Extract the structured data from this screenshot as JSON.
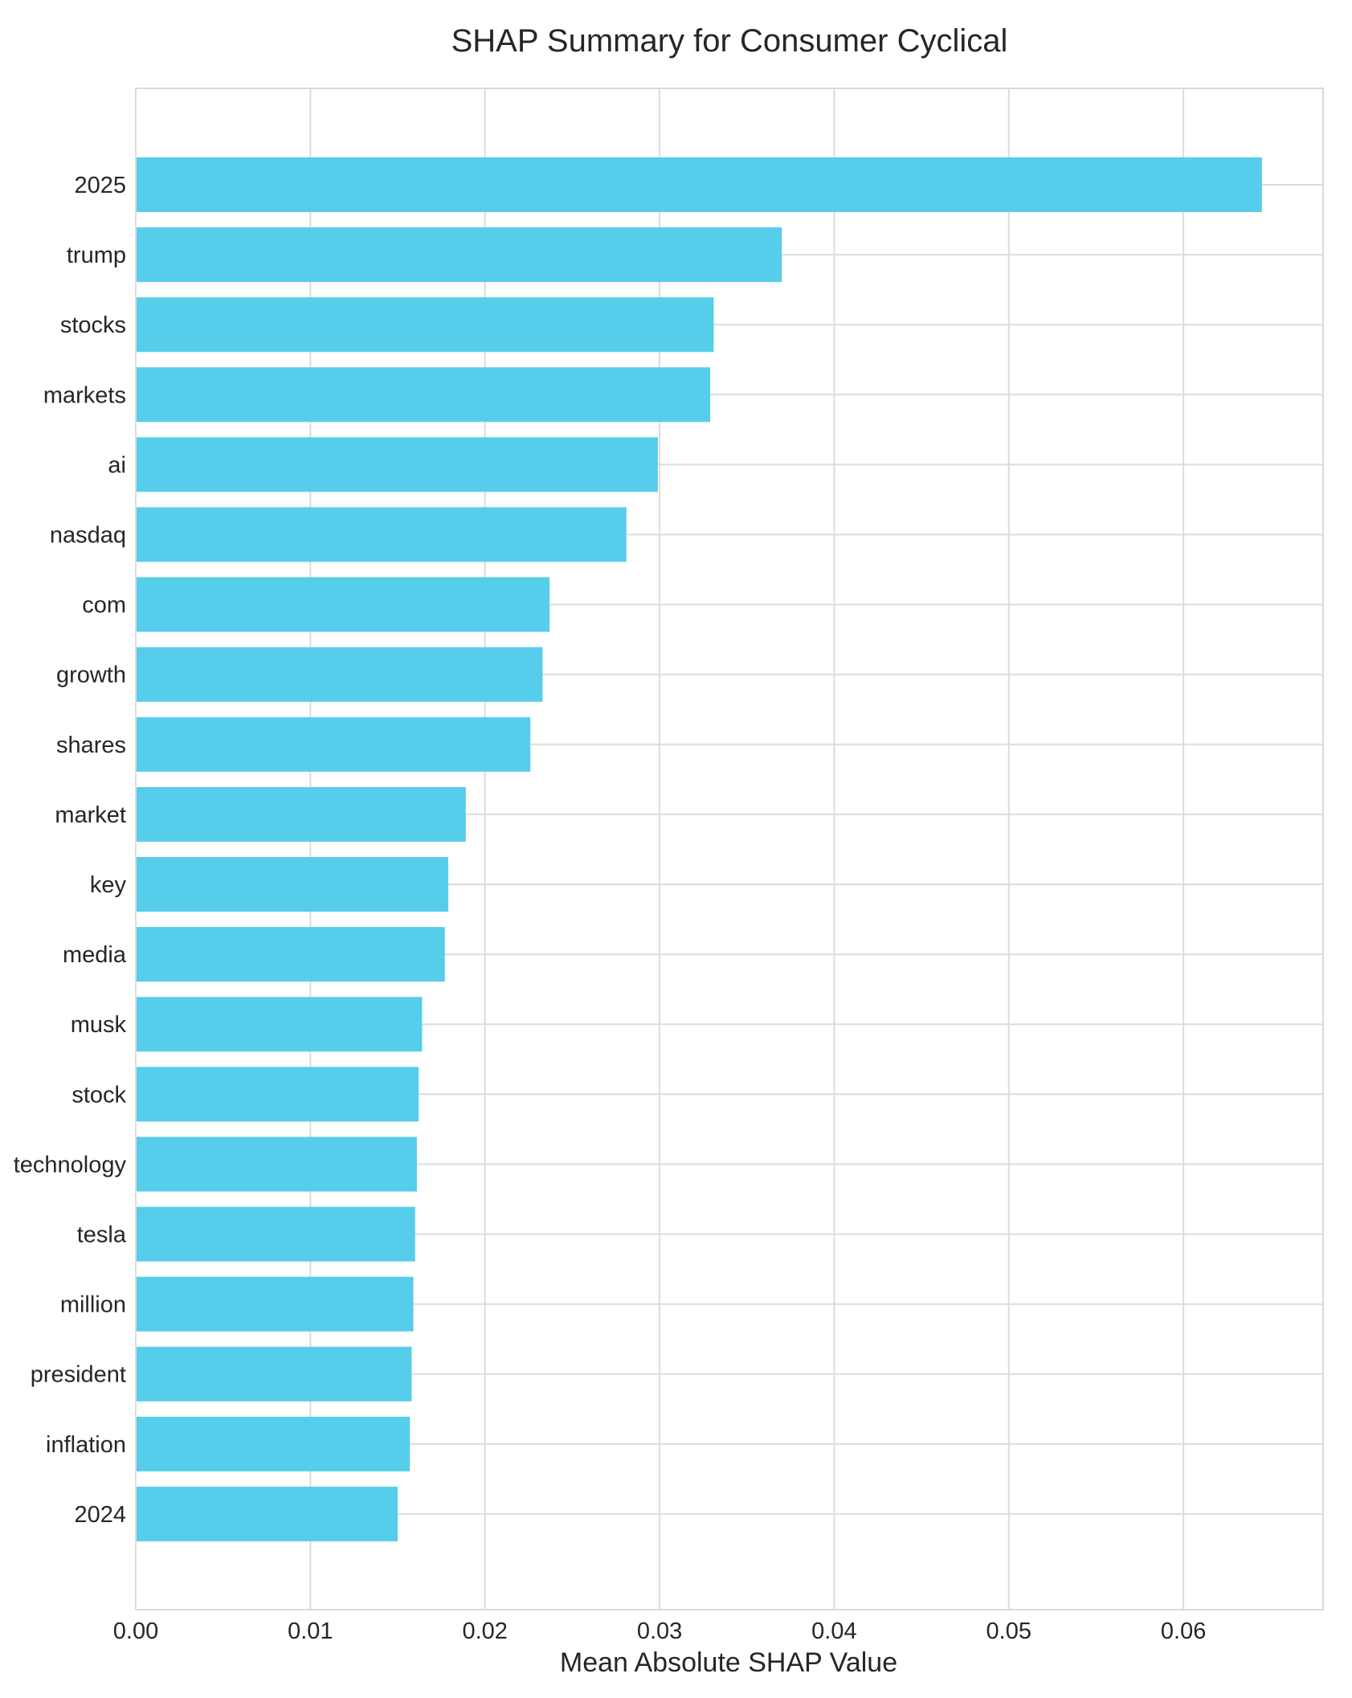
{
  "chart_data": {
    "type": "bar",
    "orientation": "horizontal",
    "title": "SHAP Summary for Consumer Cyclical",
    "xlabel": "Mean Absolute SHAP Value",
    "ylabel": "",
    "xlim": [
      0,
      0.068
    ],
    "xticks": [
      "0.00",
      "0.01",
      "0.02",
      "0.03",
      "0.04",
      "0.05",
      "0.06"
    ],
    "grid": true,
    "bar_color": "#56CDEA",
    "categories": [
      "2025",
      "trump",
      "stocks",
      "markets",
      "ai",
      "nasdaq",
      "com",
      "growth",
      "shares",
      "market",
      "key",
      "media",
      "musk",
      "stock",
      "technology",
      "tesla",
      "million",
      "president",
      "inflation",
      "2024"
    ],
    "values": [
      0.0645,
      0.037,
      0.0331,
      0.0329,
      0.0299,
      0.0281,
      0.0237,
      0.0233,
      0.0226,
      0.0189,
      0.0179,
      0.0177,
      0.0164,
      0.0162,
      0.0161,
      0.016,
      0.0159,
      0.0158,
      0.0157,
      0.015
    ]
  }
}
